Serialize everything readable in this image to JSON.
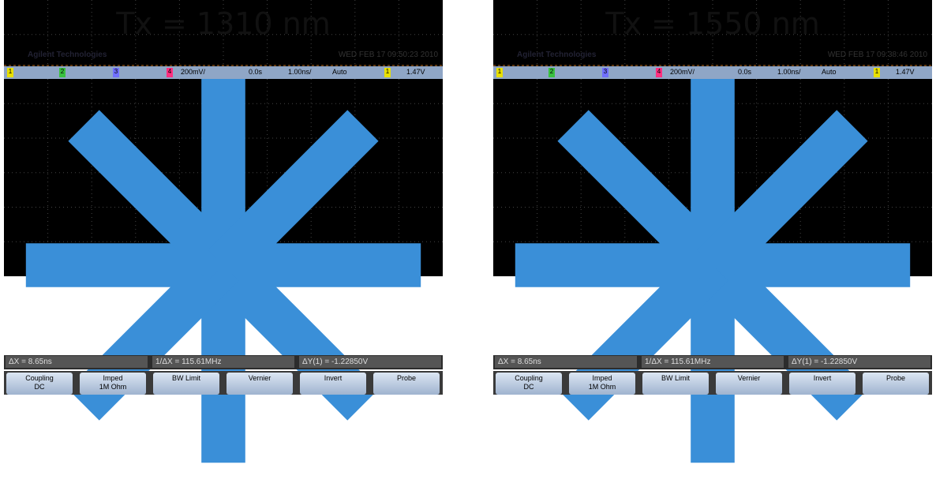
{
  "panels": [
    {
      "title": "Tx = 1310 nm",
      "brand": "Agilent Technologies",
      "timestamp": "WED FEB 17 09:50:23 2010",
      "status": {
        "channels": [
          "1",
          "2",
          "3",
          "4"
        ],
        "scale": "200mV/",
        "delay": "0.0s",
        "timebase": "1.00ns/",
        "mode": "Auto",
        "trigger_channel": "1",
        "trigger_level": "1.47V"
      },
      "measurements": [
        "ΔX = 8.65ns",
        "1/ΔX = 115.61MHz",
        "ΔY(1) = -1.22850V"
      ],
      "softkeys": [
        {
          "label": "Coupling",
          "value": "DC"
        },
        {
          "label": "Imped",
          "value": "1M Ohm"
        },
        {
          "label": "BW Limit"
        },
        {
          "label": "Vernier"
        },
        {
          "label": "Invert"
        },
        {
          "label": "Probe"
        }
      ]
    },
    {
      "title": "Tx = 1550 nm",
      "brand": "Agilent Technologies",
      "timestamp": "WED FEB 17 09:38:46 2010",
      "status": {
        "channels": [
          "1",
          "2",
          "3",
          "4"
        ],
        "scale": "200mV/",
        "delay": "0.0s",
        "timebase": "1.00ns/",
        "mode": "Auto",
        "trigger_channel": "1",
        "trigger_level": "1.47V"
      },
      "measurements": [
        "ΔX = 8.65ns",
        "1/ΔX = 115.61MHz",
        "ΔY(1) = -1.22850V"
      ],
      "softkeys": [
        {
          "label": "Coupling",
          "value": "DC"
        },
        {
          "label": "Imped",
          "value": "1M Ohm"
        },
        {
          "label": "BW Limit"
        },
        {
          "label": "Vernier"
        },
        {
          "label": "Invert"
        },
        {
          "label": "Probe"
        }
      ]
    }
  ]
}
